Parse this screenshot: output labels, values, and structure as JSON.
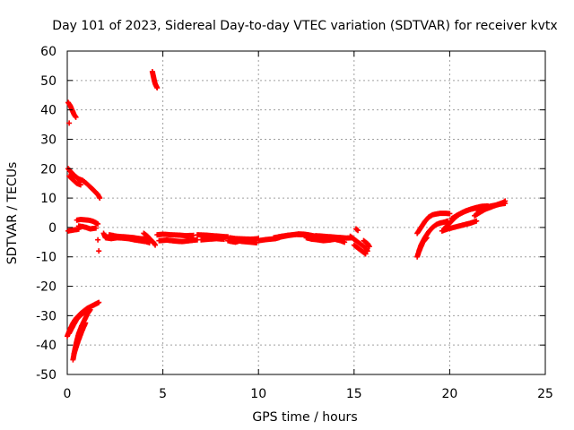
{
  "chart_data": {
    "type": "scatter",
    "title": "Day 101 of 2023, Sidereal Day-to-day VTEC variation (SDTVAR) for receiver kvtx",
    "xlabel": "GPS time / hours",
    "ylabel": "SDTVAR / TECUs",
    "xlim": [
      0,
      25
    ],
    "ylim": [
      -50,
      60
    ],
    "xticks": [
      "0",
      "5",
      "10",
      "15",
      "20",
      "25"
    ],
    "yticks": [
      "-50",
      "-40",
      "-30",
      "-20",
      "-10",
      "0",
      "10",
      "20",
      "30",
      "40",
      "50",
      "60"
    ],
    "grid": true,
    "marker": "plus",
    "series": [
      {
        "name": "SDTVAR",
        "color": "#ff0000",
        "segments": [
          [
            [
              0.05,
              42.5
            ],
            [
              0.15,
              41.5
            ],
            [
              0.25,
              40.0
            ],
            [
              0.35,
              38.5
            ],
            [
              0.45,
              37.5
            ]
          ],
          [
            [
              0.1,
              35.5
            ]
          ],
          [
            [
              4.45,
              53.0
            ],
            [
              4.5,
              51.5
            ],
            [
              4.55,
              50.0
            ],
            [
              4.6,
              48.8
            ],
            [
              4.7,
              47.5
            ]
          ],
          [
            [
              0.05,
              20.0
            ],
            [
              0.2,
              18.8
            ],
            [
              0.4,
              17.5
            ],
            [
              0.6,
              16.5
            ],
            [
              0.8,
              16.0
            ],
            [
              1.0,
              15.0
            ],
            [
              1.2,
              13.8
            ],
            [
              1.4,
              12.5
            ],
            [
              1.6,
              11.2
            ],
            [
              1.7,
              10.0
            ]
          ],
          [
            [
              0.1,
              17.5
            ],
            [
              0.3,
              16.2
            ],
            [
              0.5,
              15.0
            ],
            [
              0.7,
              14.5
            ]
          ],
          [
            [
              0.05,
              -1.2
            ],
            [
              0.2,
              -1.0
            ],
            [
              0.4,
              -0.8
            ],
            [
              0.6,
              -0.6
            ]
          ],
          [
            [
              0.5,
              2.5
            ],
            [
              0.7,
              2.7
            ],
            [
              0.9,
              2.6
            ],
            [
              1.1,
              2.5
            ],
            [
              1.3,
              2.2
            ],
            [
              1.5,
              1.6
            ],
            [
              1.6,
              1.2
            ]
          ],
          [
            [
              0.6,
              0.5
            ],
            [
              0.8,
              0.3
            ],
            [
              1.0,
              0.0
            ],
            [
              1.2,
              -0.5
            ],
            [
              1.5,
              -0.2
            ]
          ],
          [
            [
              1.6,
              -4.2
            ]
          ],
          [
            [
              1.65,
              -8.0
            ]
          ],
          [
            [
              1.9,
              -2.0
            ],
            [
              2.0,
              -3.5
            ],
            [
              2.3,
              -3.8
            ],
            [
              2.6,
              -3.5
            ],
            [
              2.9,
              -3.6
            ],
            [
              3.2,
              -3.8
            ],
            [
              3.5,
              -4.2
            ],
            [
              3.8,
              -4.5
            ],
            [
              4.1,
              -4.8
            ],
            [
              4.3,
              -5.2
            ]
          ],
          [
            [
              2.2,
              -2.5
            ],
            [
              2.6,
              -3.0
            ],
            [
              3.0,
              -3.2
            ],
            [
              3.4,
              -3.4
            ],
            [
              3.8,
              -3.8
            ],
            [
              4.2,
              -4.0
            ]
          ],
          [
            [
              4.0,
              -2.0
            ],
            [
              4.2,
              -3.0
            ],
            [
              4.4,
              -4.5
            ],
            [
              4.5,
              -5.0
            ],
            [
              4.6,
              -6.0
            ]
          ],
          [
            [
              4.7,
              -2.5
            ],
            [
              5.0,
              -2.3
            ],
            [
              5.4,
              -2.5
            ],
            [
              5.8,
              -2.6
            ],
            [
              6.2,
              -2.8
            ],
            [
              6.6,
              -2.7
            ]
          ],
          [
            [
              4.8,
              -4.5
            ],
            [
              5.2,
              -4.3
            ],
            [
              5.6,
              -4.6
            ],
            [
              6.0,
              -4.8
            ],
            [
              6.4,
              -4.5
            ],
            [
              6.8,
              -4.2
            ]
          ],
          [
            [
              6.8,
              -2.5
            ],
            [
              7.2,
              -2.6
            ],
            [
              7.6,
              -2.8
            ],
            [
              8.0,
              -3.0
            ],
            [
              8.4,
              -3.2
            ]
          ],
          [
            [
              7.0,
              -4.2
            ],
            [
              7.4,
              -4.0
            ],
            [
              7.8,
              -3.8
            ],
            [
              8.2,
              -4.0
            ]
          ],
          [
            [
              8.4,
              -4.5
            ],
            [
              8.6,
              -4.8
            ],
            [
              8.8,
              -5.0
            ],
            [
              9.0,
              -4.6
            ],
            [
              9.2,
              -4.8
            ],
            [
              9.6,
              -5.0
            ],
            [
              9.9,
              -5.2
            ]
          ],
          [
            [
              8.5,
              -3.5
            ],
            [
              8.8,
              -3.8
            ],
            [
              9.2,
              -3.9
            ],
            [
              9.6,
              -4.0
            ],
            [
              10.0,
              -3.8
            ]
          ],
          [
            [
              10.0,
              -4.5
            ],
            [
              10.3,
              -4.2
            ],
            [
              10.6,
              -4.0
            ],
            [
              10.9,
              -3.8
            ],
            [
              11.2,
              -3.2
            ],
            [
              11.5,
              -2.8
            ],
            [
              11.8,
              -2.5
            ],
            [
              12.1,
              -2.2
            ],
            [
              12.4,
              -2.3
            ],
            [
              12.7,
              -2.6
            ],
            [
              13.0,
              -3.0
            ],
            [
              13.2,
              -3.3
            ]
          ],
          [
            [
              10.8,
              -3.5
            ],
            [
              11.2,
              -3.0
            ],
            [
              11.6,
              -2.6
            ],
            [
              12.0,
              -2.4
            ],
            [
              12.4,
              -2.5
            ],
            [
              12.8,
              -2.9
            ]
          ],
          [
            [
              12.5,
              -3.5
            ],
            [
              12.8,
              -4.0
            ],
            [
              13.1,
              -4.2
            ],
            [
              13.4,
              -4.5
            ],
            [
              13.7,
              -4.3
            ],
            [
              14.0,
              -4.0
            ],
            [
              14.3,
              -4.5
            ],
            [
              14.5,
              -5.0
            ]
          ],
          [
            [
              13.0,
              -2.8
            ],
            [
              13.4,
              -3.0
            ],
            [
              13.8,
              -3.2
            ],
            [
              14.2,
              -3.4
            ],
            [
              14.6,
              -3.6
            ],
            [
              14.9,
              -3.5
            ]
          ],
          [
            [
              14.8,
              -3.0
            ],
            [
              15.0,
              -4.0
            ],
            [
              15.2,
              -5.0
            ],
            [
              15.4,
              -6.0
            ],
            [
              15.6,
              -7.0
            ],
            [
              15.7,
              -8.0
            ]
          ],
          [
            [
              15.0,
              -6.0
            ],
            [
              15.2,
              -7.0
            ],
            [
              15.4,
              -8.0
            ],
            [
              15.6,
              -9.0
            ]
          ],
          [
            [
              15.1,
              -0.5
            ],
            [
              15.2,
              -1.0
            ]
          ],
          [
            [
              15.5,
              -4.5
            ],
            [
              15.7,
              -5.5
            ],
            [
              15.8,
              -6.5
            ]
          ],
          [
            [
              18.3,
              -10.0
            ],
            [
              18.5,
              -6.0
            ],
            [
              18.7,
              -3.5
            ],
            [
              18.9,
              -1.5
            ],
            [
              19.1,
              0.0
            ],
            [
              19.3,
              1.0
            ],
            [
              19.5,
              1.5
            ],
            [
              19.7,
              1.8
            ],
            [
              19.9,
              2.2
            ]
          ],
          [
            [
              18.3,
              -2.0
            ],
            [
              18.5,
              0.0
            ],
            [
              18.7,
              2.0
            ],
            [
              18.9,
              3.5
            ],
            [
              19.1,
              4.3
            ],
            [
              19.3,
              4.6
            ],
            [
              19.5,
              4.8
            ],
            [
              19.8,
              4.8
            ],
            [
              20.0,
              4.7
            ]
          ],
          [
            [
              18.4,
              -8.0
            ],
            [
              18.6,
              -5.0
            ],
            [
              18.8,
              -3.5
            ]
          ],
          [
            [
              19.6,
              -1.2
            ],
            [
              19.9,
              -0.5
            ],
            [
              20.2,
              0.0
            ],
            [
              20.5,
              0.5
            ],
            [
              20.8,
              1.0
            ],
            [
              21.1,
              1.5
            ],
            [
              21.4,
              2.2
            ]
          ],
          [
            [
              19.7,
              -0.5
            ],
            [
              19.9,
              0.8
            ],
            [
              20.1,
              2.2
            ],
            [
              20.3,
              3.5
            ],
            [
              20.5,
              4.5
            ],
            [
              20.8,
              5.5
            ],
            [
              21.1,
              6.2
            ],
            [
              21.4,
              6.8
            ],
            [
              21.7,
              7.2
            ],
            [
              22.0,
              7.3
            ]
          ],
          [
            [
              20.1,
              3.0
            ],
            [
              20.4,
              4.2
            ],
            [
              20.7,
              5.2
            ],
            [
              21.0,
              6.0
            ],
            [
              21.3,
              6.5
            ],
            [
              21.6,
              7.0
            ]
          ],
          [
            [
              21.3,
              4.0
            ],
            [
              21.6,
              5.2
            ],
            [
              21.9,
              6.3
            ],
            [
              22.2,
              7.0
            ],
            [
              22.5,
              7.8
            ],
            [
              22.8,
              8.5
            ],
            [
              22.9,
              9.0
            ]
          ],
          [
            [
              21.5,
              5.5
            ],
            [
              21.8,
              6.5
            ],
            [
              22.1,
              7.2
            ],
            [
              22.4,
              7.6
            ],
            [
              22.7,
              8.0
            ],
            [
              22.9,
              8.2
            ]
          ],
          [
            [
              0.0,
              -37.0
            ],
            [
              0.15,
              -34.5
            ],
            [
              0.3,
              -32.5
            ],
            [
              0.45,
              -31.0
            ],
            [
              0.6,
              -30.0
            ],
            [
              0.75,
              -29.0
            ],
            [
              0.9,
              -28.2
            ],
            [
              1.05,
              -27.5
            ],
            [
              1.2,
              -27.0
            ],
            [
              1.35,
              -26.5
            ],
            [
              1.5,
              -26.0
            ],
            [
              1.65,
              -25.5
            ]
          ],
          [
            [
              0.1,
              -36.0
            ],
            [
              0.3,
              -33.5
            ],
            [
              0.5,
              -31.2
            ],
            [
              0.7,
              -29.8
            ],
            [
              0.9,
              -28.8
            ]
          ],
          [
            [
              0.3,
              -45.0
            ],
            [
              0.4,
              -41.5
            ],
            [
              0.5,
              -38.5
            ],
            [
              0.6,
              -36.0
            ],
            [
              0.75,
              -33.5
            ],
            [
              0.9,
              -31.5
            ],
            [
              1.05,
              -29.5
            ],
            [
              1.2,
              -28.0
            ]
          ],
          [
            [
              0.35,
              -43.0
            ],
            [
              0.55,
              -39.0
            ],
            [
              0.75,
              -35.5
            ],
            [
              0.95,
              -32.5
            ]
          ]
        ]
      }
    ]
  }
}
